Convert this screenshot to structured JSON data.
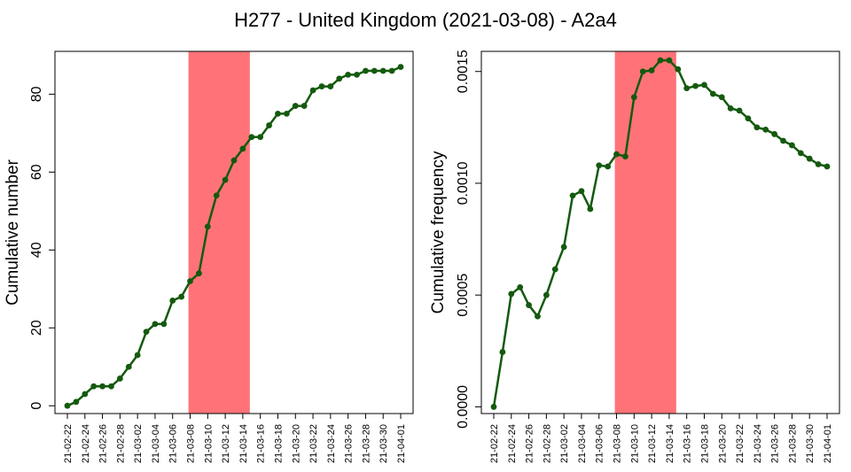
{
  "title": "H277 - United Kingdom (2021-03-08) - A2a4",
  "x_dates": [
    "21-02-22",
    "21-02-23",
    "21-02-24",
    "21-02-25",
    "21-02-26",
    "21-02-27",
    "21-02-28",
    "21-03-01",
    "21-03-02",
    "21-03-03",
    "21-03-04",
    "21-03-05",
    "21-03-06",
    "21-03-07",
    "21-03-08",
    "21-03-09",
    "21-03-10",
    "21-03-11",
    "21-03-12",
    "21-03-13",
    "21-03-14",
    "21-03-15",
    "21-03-16",
    "21-03-17",
    "21-03-18",
    "21-03-19",
    "21-03-20",
    "21-03-21",
    "21-03-22",
    "21-03-23",
    "21-03-24",
    "21-03-25",
    "21-03-26",
    "21-03-27",
    "21-03-28",
    "21-03-29",
    "21-03-30",
    "21-03-31",
    "21-04-01"
  ],
  "x_tick_labels": [
    "21-02-22",
    "21-02-24",
    "21-02-26",
    "21-02-28",
    "21-03-02",
    "21-03-04",
    "21-03-06",
    "21-03-08",
    "21-03-10",
    "21-03-12",
    "21-03-14",
    "21-03-16",
    "21-03-18",
    "21-03-20",
    "21-03-22",
    "21-03-24",
    "21-03-26",
    "21-03-28",
    "21-03-30",
    "21-04-01"
  ],
  "highlight_range": [
    "21-03-08",
    "21-03-15"
  ],
  "colors": {
    "line": "#145a0e",
    "highlight": "#ff7378"
  },
  "chart_data": [
    {
      "type": "line",
      "ylabel": "Cumulative number",
      "ylim": [
        -2,
        91
      ],
      "yticks": [
        0,
        20,
        40,
        60,
        80
      ],
      "ytick_labels": [
        "0",
        "20",
        "40",
        "60",
        "80"
      ],
      "values": [
        0,
        1,
        3,
        5,
        5,
        5,
        7,
        10,
        13,
        19,
        21,
        21,
        27,
        28,
        32,
        34,
        46,
        54,
        58,
        63,
        66,
        69,
        69,
        72,
        75,
        75,
        77,
        77,
        81,
        82,
        82,
        84,
        85,
        85,
        86,
        86,
        86,
        86,
        87
      ]
    },
    {
      "type": "line",
      "ylabel": "Cumulative frequency",
      "ylim": [
        -3e-05,
        0.00159
      ],
      "yticks": [
        0,
        0.0005,
        0.001,
        0.0015
      ],
      "ytick_labels": [
        "0.0000",
        "0.0005",
        "0.0010",
        "0.0015"
      ],
      "values": [
        0,
        0.000245,
        0.000505,
        0.000535,
        0.000455,
        0.000405,
        0.0005,
        0.000615,
        0.000715,
        0.000945,
        0.000965,
        0.000885,
        0.00108,
        0.001075,
        0.00113,
        0.00112,
        0.001385,
        0.0015,
        0.001505,
        0.00155,
        0.00155,
        0.00151,
        0.001425,
        0.001435,
        0.00144,
        0.0014,
        0.001385,
        0.001335,
        0.001325,
        0.00129,
        0.00125,
        0.00124,
        0.00122,
        0.00119,
        0.00117,
        0.001135,
        0.00111,
        0.001085,
        0.001075
      ]
    }
  ]
}
